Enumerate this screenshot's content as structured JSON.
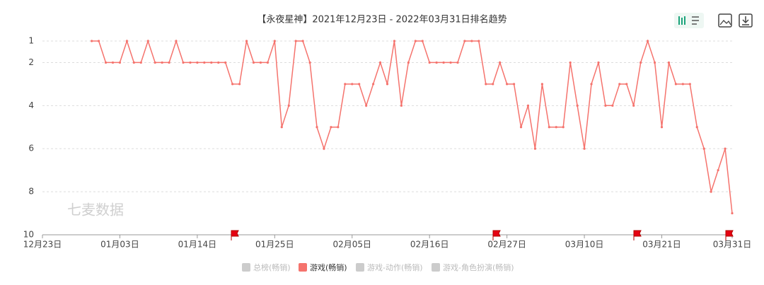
{
  "chart_data": {
    "type": "line",
    "title": "【永夜星神】2021年12月23日 - 2022年03月31日排名趋势",
    "watermark": "七麦数据",
    "x": [
      "12月23日",
      "12月24日",
      "12月25日",
      "12月26日",
      "12月27日",
      "12月28日",
      "12月29日",
      "12月30日",
      "12月31日",
      "01月01日",
      "01月02日",
      "01月03日",
      "01月04日",
      "01月05日",
      "01月06日",
      "01月07日",
      "01月08日",
      "01月09日",
      "01月10日",
      "01月11日",
      "01月12日",
      "01月13日",
      "01月14日",
      "01月15日",
      "01月16日",
      "01月17日",
      "01月18日",
      "01月19日",
      "01月20日",
      "01月21日",
      "01月22日",
      "01月23日",
      "01月24日",
      "01月25日",
      "01月26日",
      "01月27日",
      "01月28日",
      "01月29日",
      "01月30日",
      "01月31日",
      "02月01日",
      "02月02日",
      "02月03日",
      "02月04日",
      "02月05日",
      "02月06日",
      "02月07日",
      "02月08日",
      "02月09日",
      "02月10日",
      "02月11日",
      "02月12日",
      "02月13日",
      "02月14日",
      "02月15日",
      "02月16日",
      "02月17日",
      "02月18日",
      "02月19日",
      "02月20日",
      "02月21日",
      "02月22日",
      "02月23日",
      "02月24日",
      "02月25日",
      "02月26日",
      "02月27日",
      "02月28日",
      "03月01日",
      "03月02日",
      "03月03日",
      "03月04日",
      "03月05日",
      "03月06日",
      "03月07日",
      "03月08日",
      "03月09日",
      "03月10日",
      "03月11日",
      "03月12日",
      "03月13日",
      "03月14日",
      "03月15日",
      "03月16日",
      "03月17日",
      "03月18日",
      "03月19日",
      "03月20日",
      "03月21日",
      "03月22日",
      "03月23日",
      "03月24日",
      "03月25日",
      "03月26日",
      "03月27日",
      "03月28日",
      "03月29日",
      "03月30日",
      "03月31日"
    ],
    "xticks": [
      "12月23日",
      "01月03日",
      "01月14日",
      "01月25日",
      "02月05日",
      "02月16日",
      "02月27日",
      "03月10日",
      "03月21日",
      "03月31日"
    ],
    "series": [
      {
        "name": "总榜(畅销)",
        "color": "#cccccc",
        "visible": false
      },
      {
        "name": "游戏(畅销)",
        "color": "#f5736d",
        "visible": true,
        "values": [
          null,
          null,
          null,
          null,
          null,
          null,
          null,
          1,
          1,
          2,
          2,
          2,
          1,
          2,
          2,
          1,
          2,
          2,
          2,
          1,
          2,
          2,
          2,
          2,
          2,
          2,
          2,
          3,
          3,
          1,
          2,
          2,
          2,
          1,
          5,
          4,
          1,
          1,
          2,
          5,
          6,
          5,
          5,
          3,
          3,
          3,
          4,
          3,
          2,
          3,
          1,
          4,
          2,
          1,
          1,
          2,
          2,
          2,
          2,
          2,
          1,
          1,
          1,
          3,
          3,
          2,
          3,
          3,
          5,
          4,
          6,
          3,
          5,
          5,
          5,
          2,
          4,
          6,
          3,
          2,
          4,
          4,
          3,
          3,
          4,
          2,
          1,
          2,
          5,
          2,
          3,
          3,
          3,
          5,
          6,
          8,
          7,
          6,
          9
        ]
      },
      {
        "name": "游戏-动作(畅销)",
        "color": "#cccccc",
        "visible": false
      },
      {
        "name": "游戏-角色扮演(畅销)",
        "color": "#cccccc",
        "visible": false
      }
    ],
    "ylim": [
      1,
      10
    ],
    "y_inverted": true,
    "yticks": [
      1,
      2,
      4,
      6,
      8,
      10
    ],
    "grid": true
  }
}
